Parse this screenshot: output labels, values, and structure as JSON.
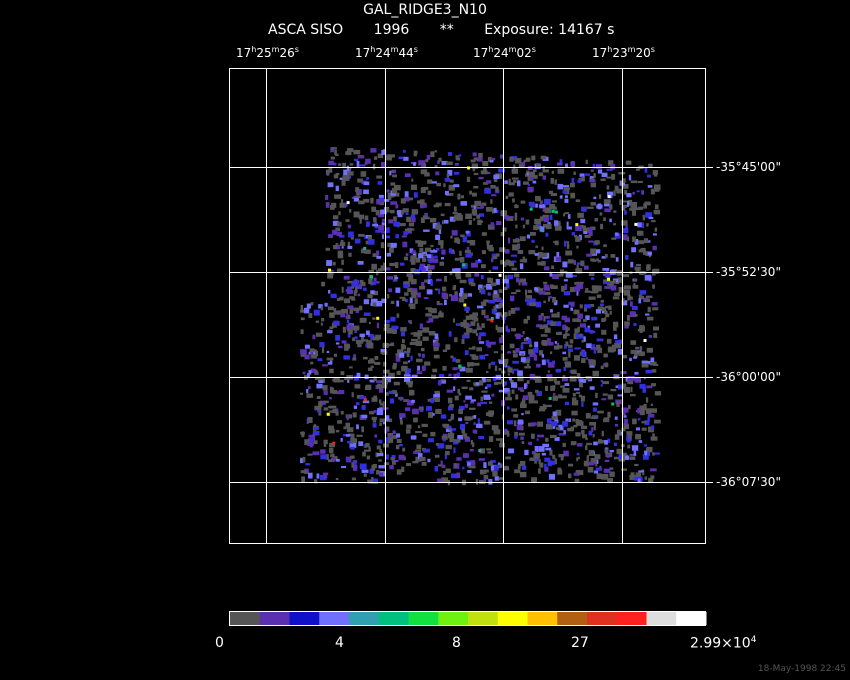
{
  "header": {
    "title": "GAL_RIDGE3_N10",
    "instrument": "ASCA SISO",
    "year": "1996",
    "flag": "**",
    "exposure": "Exposure: 14167 s"
  },
  "ra_axis": [
    {
      "h": "17",
      "m": "25",
      "s": "26"
    },
    {
      "h": "17",
      "m": "24",
      "s": "44"
    },
    {
      "h": "17",
      "m": "24",
      "s": "02"
    },
    {
      "h": "17",
      "m": "23",
      "s": "20"
    }
  ],
  "dec_axis": [
    "-35°45'00\"",
    "-35°52'30\"",
    "-36°00'00\"",
    "-36°07'30\""
  ],
  "colorbar": {
    "colors": [
      "#555555",
      "#5a2fb0",
      "#1010c8",
      "#7070ff",
      "#30a0b0",
      "#00c080",
      "#10e040",
      "#70f010",
      "#c0e010",
      "#ffff00",
      "#ffc000",
      "#b06010",
      "#e03020",
      "#ff2020",
      "#dddddd",
      "#ffffff"
    ],
    "labels": [
      "0",
      "4",
      "8",
      "27",
      "2.99×10"
    ],
    "exp": "4"
  },
  "footer": {
    "stamp": "18-May-1998 22:45"
  }
}
